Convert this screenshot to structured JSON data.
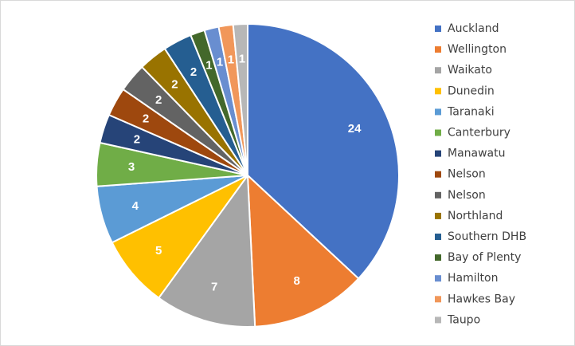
{
  "chart_data": {
    "type": "pie",
    "title": "",
    "legend_position": "right",
    "categories": [
      "Auckland",
      "Wellington",
      "Waikato",
      "Dunedin",
      "Taranaki",
      "Canterbury",
      "Manawatu",
      "Nelson",
      "Nelson",
      "Northland",
      "Southern DHB",
      "Bay of Plenty",
      "Hamilton",
      "Hawkes Bay",
      "Taupo"
    ],
    "values": [
      24,
      8,
      7,
      5,
      4,
      3,
      2,
      2,
      2,
      2,
      2,
      1,
      1,
      1,
      1
    ],
    "data_labels": [
      "24",
      "8",
      "7",
      "5",
      "4",
      "3",
      "2",
      "2",
      "2",
      "2",
      "2",
      "1",
      "1",
      "1",
      "1"
    ],
    "colors": [
      "#4472C4",
      "#ED7D31",
      "#A5A5A5",
      "#FFC000",
      "#5B9BD5",
      "#70AD47",
      "#264478",
      "#9E480E",
      "#636363",
      "#997300",
      "#255E91",
      "#43682B",
      "#698ED0",
      "#F1975A",
      "#B7B7B7"
    ]
  }
}
